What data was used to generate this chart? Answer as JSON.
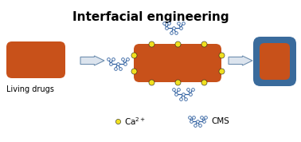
{
  "title": "Interfacial engineering",
  "title_fontsize": 11,
  "title_fontweight": "bold",
  "bg_color": "#ffffff",
  "orange_color": "#c8511a",
  "blue_color": "#3a6b9c",
  "yellow_color": "#f0e020",
  "arrow_facecolor": "#dce4ee",
  "arrow_edgecolor": "#7090b0",
  "cms_color": "#3060a0",
  "text_color": "#000000",
  "living_drugs_label": "Living drugs",
  "legend_ca_label": "Ca$^{2+}$",
  "legend_cms_label": "CMS"
}
